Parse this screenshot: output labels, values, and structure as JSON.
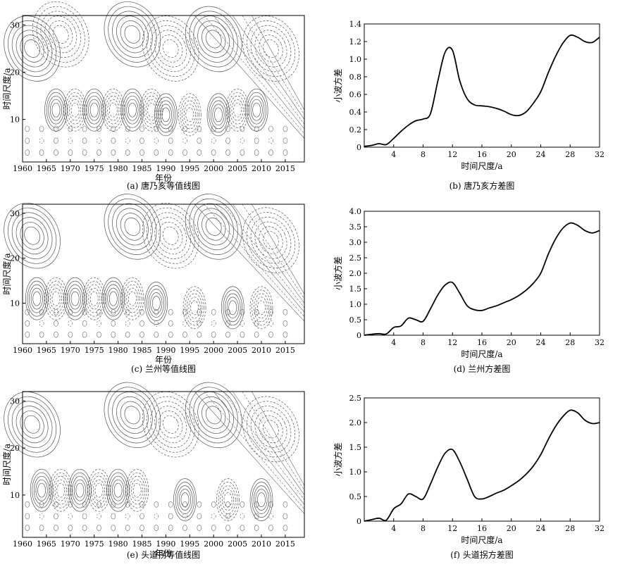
{
  "chart_data": [
    {
      "id": "a",
      "type": "heatmap",
      "caption": "(a) 唐乃亥等值线图",
      "xlabel": "年份",
      "ylabel": "时间尺度/a",
      "xlim": [
        1960,
        2019
      ],
      "ylim": [
        1,
        32
      ],
      "xticks": [
        1960,
        1965,
        1970,
        1975,
        1980,
        1985,
        1990,
        1995,
        2000,
        2005,
        2010,
        2015
      ],
      "yticks": [
        10,
        20,
        30
      ],
      "contour_centers": [
        {
          "year": 1962,
          "scale": 25,
          "sign": 1
        },
        {
          "year": 1968,
          "scale": 28,
          "sign": -1
        },
        {
          "year": 1983,
          "scale": 28,
          "sign": 1
        },
        {
          "year": 1991,
          "scale": 25,
          "sign": -1
        },
        {
          "year": 2000,
          "scale": 27,
          "sign": 1
        },
        {
          "year": 2012,
          "scale": 25,
          "sign": -1
        },
        {
          "year": 1967,
          "scale": 12,
          "sign": 1
        },
        {
          "year": 1971,
          "scale": 12,
          "sign": -1
        },
        {
          "year": 1975,
          "scale": 12,
          "sign": 1
        },
        {
          "year": 1979,
          "scale": 12,
          "sign": -1
        },
        {
          "year": 1983,
          "scale": 12,
          "sign": 1
        },
        {
          "year": 1987,
          "scale": 12,
          "sign": -1
        },
        {
          "year": 1990,
          "scale": 11,
          "sign": 1
        },
        {
          "year": 1995,
          "scale": 11,
          "sign": -1
        },
        {
          "year": 2001,
          "scale": 11,
          "sign": 1
        },
        {
          "year": 2005,
          "scale": 12,
          "sign": -1
        },
        {
          "year": 2009,
          "scale": 12,
          "sign": 1
        }
      ]
    },
    {
      "id": "b",
      "type": "line",
      "caption": "(b) 唐乃亥方差图",
      "xlabel": "时间尺度/a",
      "ylabel": "小波方差",
      "xlim": [
        0,
        32
      ],
      "ylim": [
        0,
        1.4
      ],
      "xticks": [
        4,
        8,
        12,
        16,
        20,
        24,
        28,
        32
      ],
      "yticks": [
        0,
        0.2,
        0.4,
        0.6,
        0.8,
        1.0,
        1.2,
        1.4
      ],
      "ytick_labels": [
        "0",
        "0.2",
        "0.4",
        "0.6",
        "0.8",
        "1.0",
        "1.2",
        "1.4"
      ],
      "x": [
        0,
        1,
        2,
        3,
        4,
        5,
        6,
        7,
        8,
        9,
        10,
        11,
        12,
        13,
        14,
        15,
        16,
        17,
        18,
        19,
        20,
        21,
        22,
        23,
        24,
        25,
        26,
        27,
        28,
        29,
        30,
        31,
        32
      ],
      "y": [
        0.01,
        0.02,
        0.04,
        0.03,
        0.1,
        0.18,
        0.25,
        0.3,
        0.32,
        0.38,
        0.75,
        1.08,
        1.1,
        0.75,
        0.55,
        0.48,
        0.47,
        0.46,
        0.44,
        0.41,
        0.37,
        0.36,
        0.4,
        0.5,
        0.63,
        0.84,
        1.03,
        1.18,
        1.27,
        1.25,
        1.2,
        1.19,
        1.25
      ]
    },
    {
      "id": "c",
      "type": "heatmap",
      "caption": "(c) 兰州等值线图",
      "xlabel": "年份",
      "ylabel": "时间尺度/a",
      "xlim": [
        1960,
        2019
      ],
      "ylim": [
        1,
        32
      ],
      "xticks": [
        1960,
        1965,
        1970,
        1975,
        1980,
        1985,
        1990,
        1995,
        2000,
        2005,
        2010,
        2015
      ],
      "yticks": [
        10,
        20,
        30
      ],
      "contour_centers": [
        {
          "year": 1962,
          "scale": 25,
          "sign": 1
        },
        {
          "year": 1983,
          "scale": 27,
          "sign": 1
        },
        {
          "year": 1991,
          "scale": 25,
          "sign": -1
        },
        {
          "year": 2000,
          "scale": 27,
          "sign": 1
        },
        {
          "year": 2012,
          "scale": 24,
          "sign": -1
        },
        {
          "year": 1963,
          "scale": 11,
          "sign": 1
        },
        {
          "year": 1967,
          "scale": 11,
          "sign": -1
        },
        {
          "year": 1971,
          "scale": 11,
          "sign": 1
        },
        {
          "year": 1975,
          "scale": 11,
          "sign": -1
        },
        {
          "year": 1979,
          "scale": 11,
          "sign": 1
        },
        {
          "year": 1983,
          "scale": 11,
          "sign": -1
        },
        {
          "year": 1988,
          "scale": 10,
          "sign": 1
        },
        {
          "year": 1996,
          "scale": 9,
          "sign": -1
        },
        {
          "year": 2004,
          "scale": 9,
          "sign": 1
        },
        {
          "year": 2010,
          "scale": 9,
          "sign": -1
        }
      ]
    },
    {
      "id": "d",
      "type": "line",
      "caption": "(d) 兰州方差图",
      "xlabel": "时间尺度/a",
      "ylabel": "小波方差",
      "xlim": [
        0,
        32
      ],
      "ylim": [
        0,
        4.0
      ],
      "xticks": [
        4,
        8,
        12,
        16,
        20,
        24,
        28,
        32
      ],
      "yticks": [
        0,
        0.5,
        1.0,
        1.5,
        2.0,
        2.5,
        3.0,
        3.5,
        4.0
      ],
      "ytick_labels": [
        "0",
        "0.5",
        "1.0",
        "1.5",
        "2.0",
        "2.5",
        "3.0",
        "3.5",
        "4.0"
      ],
      "x": [
        0,
        1,
        2,
        3,
        4,
        5,
        6,
        7,
        8,
        9,
        10,
        11,
        12,
        13,
        14,
        15,
        16,
        17,
        18,
        19,
        20,
        21,
        22,
        23,
        24,
        25,
        26,
        27,
        28,
        29,
        30,
        31,
        32
      ],
      "y": [
        0.0,
        0.03,
        0.05,
        0.04,
        0.25,
        0.3,
        0.55,
        0.5,
        0.45,
        0.85,
        1.3,
        1.62,
        1.7,
        1.35,
        0.95,
        0.82,
        0.8,
        0.88,
        0.95,
        1.05,
        1.15,
        1.28,
        1.45,
        1.68,
        2.0,
        2.6,
        3.1,
        3.45,
        3.62,
        3.55,
        3.38,
        3.3,
        3.38
      ]
    },
    {
      "id": "e",
      "type": "heatmap",
      "caption": "(e) 头道拐等值线图",
      "xlabel": "年份",
      "ylabel": "时间尺度/a",
      "xlim": [
        1960,
        2019
      ],
      "ylim": [
        1,
        32
      ],
      "xticks": [
        1960,
        1965,
        1970,
        1975,
        1980,
        1985,
        1990,
        1995,
        2000,
        2005,
        2010,
        2015
      ],
      "yticks": [
        10,
        20,
        30
      ],
      "contour_centers": [
        {
          "year": 1962,
          "scale": 25,
          "sign": 1
        },
        {
          "year": 1983,
          "scale": 27,
          "sign": 1
        },
        {
          "year": 1991,
          "scale": 25,
          "sign": -1
        },
        {
          "year": 2000,
          "scale": 27,
          "sign": 1
        },
        {
          "year": 2012,
          "scale": 24,
          "sign": -1
        },
        {
          "year": 1964,
          "scale": 11,
          "sign": 1
        },
        {
          "year": 1968,
          "scale": 11,
          "sign": -1
        },
        {
          "year": 1972,
          "scale": 11,
          "sign": 1
        },
        {
          "year": 1976,
          "scale": 11,
          "sign": -1
        },
        {
          "year": 1980,
          "scale": 11,
          "sign": 1
        },
        {
          "year": 1984,
          "scale": 11,
          "sign": -1
        },
        {
          "year": 1994,
          "scale": 9,
          "sign": 1
        },
        {
          "year": 2003,
          "scale": 9,
          "sign": -1
        },
        {
          "year": 2010,
          "scale": 9,
          "sign": 1
        }
      ]
    },
    {
      "id": "f",
      "type": "line",
      "caption": "(f) 头道拐方差图",
      "xlabel": "时间尺度/a",
      "ylabel": "小波方差",
      "xlim": [
        0,
        32
      ],
      "ylim": [
        0,
        2.5
      ],
      "xticks": [
        4,
        8,
        12,
        16,
        20,
        24,
        28,
        32
      ],
      "yticks": [
        0,
        0.5,
        1.0,
        1.5,
        2.0,
        2.5
      ],
      "ytick_labels": [
        "0",
        "0.5",
        "1.0",
        "1.5",
        "2.0",
        "2.5"
      ],
      "x": [
        0,
        1,
        2,
        3,
        4,
        5,
        6,
        7,
        8,
        9,
        10,
        11,
        12,
        13,
        14,
        15,
        16,
        17,
        18,
        19,
        20,
        21,
        22,
        23,
        24,
        25,
        26,
        27,
        28,
        29,
        30,
        31,
        32
      ],
      "y": [
        0.0,
        0.03,
        0.06,
        0.02,
        0.25,
        0.35,
        0.55,
        0.5,
        0.45,
        0.75,
        1.1,
        1.38,
        1.45,
        1.2,
        0.85,
        0.5,
        0.45,
        0.5,
        0.57,
        0.63,
        0.72,
        0.82,
        0.95,
        1.12,
        1.35,
        1.65,
        1.92,
        2.12,
        2.25,
        2.2,
        2.05,
        1.98,
        2.0
      ]
    }
  ]
}
